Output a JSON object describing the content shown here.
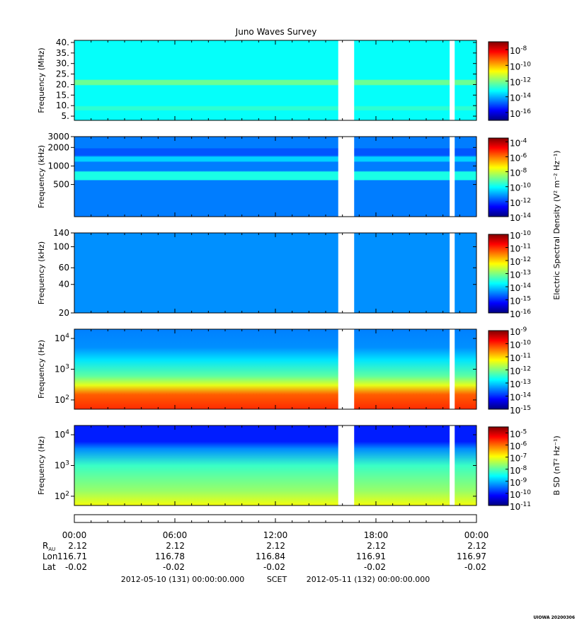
{
  "title": "Juno Waves Survey",
  "colors": {
    "gap": "#ffffff",
    "axis": "#000000"
  },
  "chart_data": [
    {
      "type": "heatmap",
      "id": "hfr-high",
      "ylabel": "Frequency (MHz)",
      "ylim": [
        3,
        41
      ],
      "yscale": "linear",
      "yticks": [
        {
          "v": 5,
          "label": "5."
        },
        {
          "v": 10,
          "label": "10."
        },
        {
          "v": 15,
          "label": "15."
        },
        {
          "v": 20,
          "label": "20."
        },
        {
          "v": 25,
          "label": "25."
        },
        {
          "v": 30,
          "label": "30."
        },
        {
          "v": 35,
          "label": "35."
        },
        {
          "v": 40,
          "label": "40."
        }
      ],
      "colorbar": {
        "label": "",
        "min_exp": -17,
        "max_exp": -7,
        "ticks": [
          {
            "e": -8,
            "label": "10",
            "sup": "-8"
          },
          {
            "e": -10,
            "label": "10",
            "sup": "-10"
          },
          {
            "e": -12,
            "label": "10",
            "sup": "-12"
          },
          {
            "e": -14,
            "label": "10",
            "sup": "-14"
          },
          {
            "e": -16,
            "label": "10",
            "sup": "-16"
          }
        ]
      },
      "base_log_value": -13.2,
      "bands": [
        {
          "from": 20,
          "to": 22,
          "log_value": -12.2
        },
        {
          "from": 8,
          "to": 9.5,
          "log_value": -12.8
        }
      ]
    },
    {
      "type": "heatmap",
      "id": "hfr-low",
      "ylabel": "Frequency (kHz)",
      "ylim": [
        150,
        3000
      ],
      "yscale": "log",
      "yticks": [
        {
          "v": 500,
          "label": "500"
        },
        {
          "v": 1000,
          "label": "1000"
        },
        {
          "v": 2000,
          "label": "2000"
        },
        {
          "v": 3000,
          "label": "3000"
        }
      ],
      "colorbar": {
        "label": "Electric Spectral Density (V² m⁻² Hz⁻¹)",
        "min_exp": -14,
        "max_exp": -3.5,
        "ticks": [
          {
            "e": -4,
            "label": "10",
            "sup": "-4"
          },
          {
            "e": -6,
            "label": "10",
            "sup": "-6"
          },
          {
            "e": -8,
            "label": "10",
            "sup": "-8"
          },
          {
            "e": -10,
            "label": "10",
            "sup": "-10"
          },
          {
            "e": -12,
            "label": "10",
            "sup": "-12"
          },
          {
            "e": -14,
            "label": "10",
            "sup": "-14"
          }
        ]
      },
      "base_log_value": -11.4,
      "bands": [
        {
          "from": 600,
          "to": 800,
          "log_value": -9.8
        },
        {
          "from": 1200,
          "to": 1400,
          "log_value": -10.5
        },
        {
          "from": 1500,
          "to": 1900,
          "log_value": -11.8
        }
      ]
    },
    {
      "type": "heatmap",
      "id": "lfr-high",
      "ylabel": "Frequency (kHz)",
      "ylim": [
        20,
        140
      ],
      "yscale": "log",
      "yticks": [
        {
          "v": 20,
          "label": "20"
        },
        {
          "v": 40,
          "label": "40"
        },
        {
          "v": 60,
          "label": "60"
        },
        {
          "v": 100,
          "label": "100"
        },
        {
          "v": 140,
          "label": "140"
        }
      ],
      "colorbar": {
        "label": "",
        "min_exp": -16,
        "max_exp": -10,
        "ticks": [
          {
            "e": -10,
            "label": "10",
            "sup": "-10"
          },
          {
            "e": -11,
            "label": "10",
            "sup": "-11"
          },
          {
            "e": -12,
            "label": "10",
            "sup": "-12"
          },
          {
            "e": -13,
            "label": "10",
            "sup": "-13"
          },
          {
            "e": -14,
            "label": "10",
            "sup": "-14"
          },
          {
            "e": -15,
            "label": "10",
            "sup": "-15"
          },
          {
            "e": -16,
            "label": "10",
            "sup": "-16"
          }
        ]
      },
      "base_log_value": -14.4,
      "bands": []
    },
    {
      "type": "heatmap",
      "id": "lfr-low",
      "ylabel": "Frequency (Hz)",
      "ylim": [
        50,
        20000
      ],
      "yscale": "log",
      "yticks": [
        {
          "v": 100,
          "label": "10",
          "sup": "2"
        },
        {
          "v": 1000,
          "label": "10",
          "sup": "3"
        },
        {
          "v": 10000,
          "label": "10",
          "sup": "4"
        }
      ],
      "colorbar": {
        "label": "",
        "min_exp": -15,
        "max_exp": -9,
        "ticks": [
          {
            "e": -9,
            "label": "10",
            "sup": "-9"
          },
          {
            "e": -10,
            "label": "10",
            "sup": "-10"
          },
          {
            "e": -11,
            "label": "10",
            "sup": "-11"
          },
          {
            "e": -12,
            "label": "10",
            "sup": "-12"
          },
          {
            "e": -13,
            "label": "10",
            "sup": "-13"
          },
          {
            "e": -14,
            "label": "10",
            "sup": "-14"
          },
          {
            "e": -15,
            "label": "10",
            "sup": "-15"
          }
        ]
      },
      "profile": [
        {
          "f": 50,
          "log_value": -10.0
        },
        {
          "f": 150,
          "log_value": -10.3
        },
        {
          "f": 300,
          "log_value": -11.4
        },
        {
          "f": 600,
          "log_value": -12.2
        },
        {
          "f": 2000,
          "log_value": -12.9
        },
        {
          "f": 5000,
          "log_value": -13.4
        },
        {
          "f": 20000,
          "log_value": -13.5
        }
      ]
    },
    {
      "type": "heatmap",
      "id": "bsd",
      "ylabel": "Frequency (Hz)",
      "ylim": [
        50,
        20000
      ],
      "yscale": "log",
      "yticks": [
        {
          "v": 100,
          "label": "10",
          "sup": "2"
        },
        {
          "v": 1000,
          "label": "10",
          "sup": "3"
        },
        {
          "v": 10000,
          "label": "10",
          "sup": "4"
        }
      ],
      "colorbar": {
        "label": "B SD (nT² Hz⁻¹)",
        "min_exp": -11,
        "max_exp": -4.5,
        "ticks": [
          {
            "e": -5,
            "label": "10",
            "sup": "-5"
          },
          {
            "e": -6,
            "label": "10",
            "sup": "-6"
          },
          {
            "e": -7,
            "label": "10",
            "sup": "-7"
          },
          {
            "e": -8,
            "label": "10",
            "sup": "-8"
          },
          {
            "e": -9,
            "label": "10",
            "sup": "-9"
          },
          {
            "e": -10,
            "label": "10",
            "sup": "-10"
          },
          {
            "e": -11,
            "label": "10",
            "sup": "-11"
          }
        ]
      },
      "profile": [
        {
          "f": 50,
          "log_value": -7.0
        },
        {
          "f": 150,
          "log_value": -7.6
        },
        {
          "f": 1000,
          "log_value": -8.2
        },
        {
          "f": 3500,
          "log_value": -9.3
        },
        {
          "f": 6000,
          "log_value": -10.0
        },
        {
          "f": 20000,
          "log_value": -10.0
        }
      ]
    }
  ],
  "time_axis": {
    "start_hour": 0,
    "end_hour": 24,
    "labels": [
      {
        "h": 0,
        "label": "00:00"
      },
      {
        "h": 6,
        "label": "06:00"
      },
      {
        "h": 12,
        "label": "12:00"
      },
      {
        "h": 18,
        "label": "18:00"
      },
      {
        "h": 24,
        "label": "00:00"
      }
    ],
    "gaps": [
      {
        "from": 15.75,
        "to": 16.7
      },
      {
        "from": 22.4,
        "to": 22.7
      }
    ]
  },
  "ephemeris": {
    "rows": [
      {
        "label": "R",
        "sub": "AU",
        "values": [
          "2.12",
          "2.12",
          "2.12",
          "2.12",
          "2.12"
        ]
      },
      {
        "label": "Lon",
        "values": [
          "116.71",
          "116.78",
          "116.84",
          "116.91",
          "116.97"
        ]
      },
      {
        "label": "Lat",
        "values": [
          "-0.02",
          "-0.02",
          "-0.02",
          "-0.02",
          "-0.02"
        ]
      }
    ]
  },
  "footer": {
    "start": "2012-05-10 (131) 00:00:00.000",
    "scet": "SCET",
    "end": "2012-05-11 (132) 00:00:00.000"
  },
  "credit": "UIOWA 20200306"
}
